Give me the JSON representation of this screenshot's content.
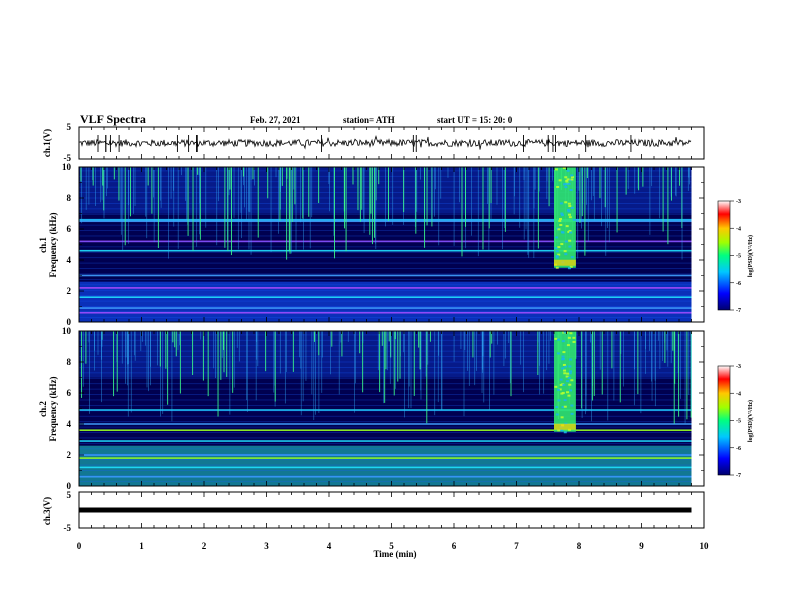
{
  "header": {
    "title": "VLF Spectra",
    "date": "Feb. 27, 2021",
    "station": "station= ATH",
    "start": "start  UT =   15: 20: 0"
  },
  "chart_data": {
    "type": "heatmap",
    "xlabel": "Time  (min)",
    "x_range": [
      0,
      10
    ],
    "x_ticks": [
      "0",
      "1",
      "2",
      "3",
      "4",
      "5",
      "6",
      "7",
      "8",
      "9",
      "10"
    ],
    "panels": [
      {
        "kind": "waveform",
        "ylabel": "ch.1(V)",
        "y_range": [
          -5,
          5
        ],
        "y_ticks": [
          "5",
          "-5"
        ]
      },
      {
        "kind": "spectrogram",
        "ylabel": "ch.1",
        "ylabel2": "Frequency  (kHz)",
        "y_range": [
          0,
          10
        ],
        "y_ticks": [
          "0",
          "2",
          "4",
          "6",
          "8",
          "10"
        ],
        "colorbar": {
          "label": "log(PSD)(V²/Hz)",
          "range": [
            -7,
            -3
          ],
          "ticks": [
            "-3",
            "-4",
            "-5",
            "-6",
            "-7"
          ]
        },
        "features": {
          "broadband_burst_min": [
            7.6,
            7.95
          ],
          "burst_low_edge_khz": 3.5,
          "strong_lines_khz": [
            6.6,
            6.5,
            5.2,
            4.6,
            3.0,
            2.2,
            1.6,
            0.9,
            0.6
          ],
          "data_end_min": 9.8
        }
      },
      {
        "kind": "spectrogram",
        "ylabel": "ch.2",
        "ylabel2": "Frequency  (kHz)",
        "y_range": [
          0,
          10
        ],
        "y_ticks": [
          "0",
          "2",
          "4",
          "6",
          "8",
          "10"
        ],
        "colorbar": {
          "label": "log(PSD)(V²/Hz)",
          "range": [
            -7,
            -3
          ],
          "ticks": [
            "-3",
            "-4",
            "-5",
            "-6",
            "-7"
          ]
        },
        "features": {
          "broadband_burst_min": [
            7.6,
            7.95
          ],
          "burst_low_edge_khz": 3.5,
          "strong_lines_khz": [
            4.9,
            4.0,
            3.6,
            2.9,
            2.0,
            1.8,
            1.2,
            0.6
          ],
          "data_end_min": 9.8
        }
      },
      {
        "kind": "waveform",
        "ylabel": "ch.3(V)",
        "y_range": [
          -5,
          5
        ],
        "y_ticks": [
          "5",
          "-5"
        ],
        "level_v": 0.0
      }
    ]
  }
}
